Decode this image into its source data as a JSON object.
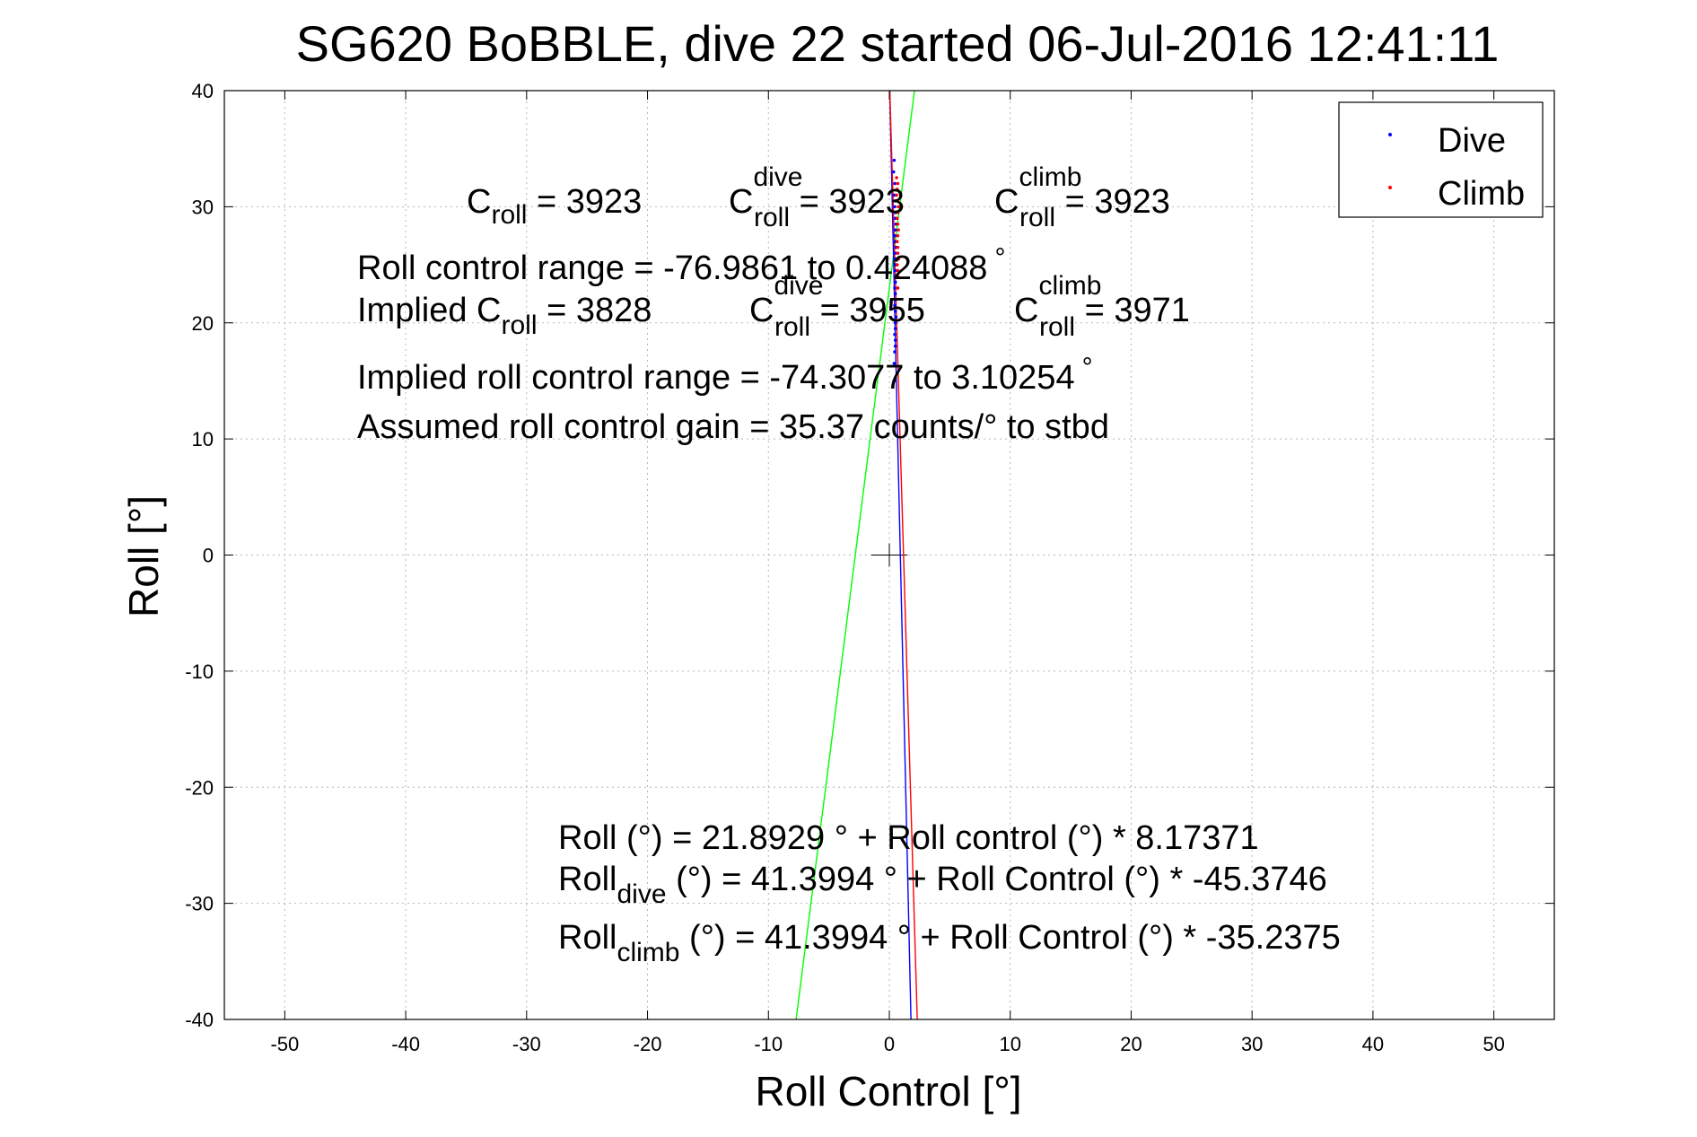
{
  "chart_data": {
    "type": "scatter",
    "title": "SG620 BoBBLE, dive 22 started 06-Jul-2016 12:41:11",
    "xlabel": "Roll Control [°]",
    "ylabel": "Roll [°]",
    "xlim": [
      -55,
      55
    ],
    "ylim": [
      -40,
      40
    ],
    "xticks": [
      -50,
      -40,
      -30,
      -20,
      -10,
      0,
      10,
      20,
      30,
      40,
      50
    ],
    "yticks": [
      -40,
      -30,
      -20,
      -10,
      0,
      10,
      20,
      30,
      40
    ],
    "grid": true,
    "legend": {
      "position": "top-right",
      "entries": [
        "Dive",
        "Climb"
      ]
    },
    "series": [
      {
        "name": "Dive",
        "color": "#0000ff",
        "points": [
          [
            0.4,
            34
          ],
          [
            0.35,
            33
          ],
          [
            0.45,
            32
          ],
          [
            0.4,
            31
          ],
          [
            0.5,
            30.5
          ],
          [
            0.45,
            30
          ],
          [
            0.5,
            29.5
          ],
          [
            0.5,
            29
          ],
          [
            0.55,
            28.5
          ],
          [
            0.5,
            28
          ],
          [
            0.45,
            27.5
          ],
          [
            0.5,
            27
          ],
          [
            0.55,
            26.5
          ],
          [
            0.5,
            26
          ],
          [
            0.45,
            25.5
          ],
          [
            0.5,
            25
          ],
          [
            0.5,
            24.5
          ],
          [
            0.55,
            24
          ],
          [
            0.5,
            23.5
          ],
          [
            0.45,
            23
          ],
          [
            0.5,
            22.5
          ],
          [
            0.5,
            22
          ],
          [
            0.45,
            21.5
          ],
          [
            0.5,
            21
          ],
          [
            0.55,
            20.5
          ],
          [
            0.5,
            20
          ],
          [
            0.5,
            19.5
          ],
          [
            0.45,
            19
          ],
          [
            0.5,
            18.5
          ],
          [
            0.5,
            18
          ],
          [
            0.45,
            17.5
          ],
          [
            0.4,
            16.5
          ],
          [
            0.4,
            15
          ]
        ]
      },
      {
        "name": "Climb",
        "color": "#ff0000",
        "points": [
          [
            0.6,
            32.5
          ],
          [
            0.7,
            32
          ],
          [
            0.65,
            31.5
          ],
          [
            0.6,
            31
          ],
          [
            0.7,
            30.5
          ],
          [
            0.75,
            30
          ],
          [
            0.7,
            29.5
          ],
          [
            0.65,
            29
          ],
          [
            0.7,
            28.5
          ],
          [
            0.75,
            28
          ],
          [
            0.7,
            27.5
          ],
          [
            0.65,
            27
          ],
          [
            0.7,
            26.5
          ],
          [
            0.7,
            26
          ],
          [
            0.75,
            25.5
          ],
          [
            0.65,
            25
          ],
          [
            0.7,
            24.5
          ],
          [
            0.7,
            24
          ],
          [
            0.7,
            23
          ]
        ]
      }
    ],
    "fit_lines": [
      {
        "color": "#00ff00",
        "x": [
          -7.71,
          2.08
        ],
        "y": [
          -40,
          40
        ]
      },
      {
        "color": "#0000ff",
        "x": [
          1.79,
          0.03
        ],
        "y": [
          -40,
          40
        ]
      },
      {
        "color": "#ff0000",
        "x": [
          2.31,
          0.04
        ],
        "y": [
          -40,
          40
        ]
      }
    ],
    "annotations": {
      "c_roll": {
        "base": "C",
        "sub": "roll",
        "rest": " = 3923"
      },
      "c_roll_dive": {
        "base": "C",
        "sup": "dive",
        "sub": "roll",
        "rest": " = 3923"
      },
      "c_roll_climb": {
        "base": "C",
        "sup": "climb",
        "sub": "roll",
        "rest": " = 3923"
      },
      "roll_control_range": {
        "text": "Roll control range = -76.9861 to 0.424088",
        "sup": "°"
      },
      "implied_c_roll": {
        "base": "Implied C",
        "sub": "roll",
        "rest": " = 3828"
      },
      "implied_c_roll_dive": {
        "base": "C",
        "sup": "dive",
        "sub": "roll",
        "rest": " = 3955"
      },
      "implied_c_roll_climb": {
        "base": "C",
        "sup": "climb",
        "sub": "roll",
        "rest": " = 3971"
      },
      "implied_range": {
        "text": "Implied roll control range = -74.3077 to 3.10254",
        "sup": "°"
      },
      "gain": {
        "text": "Assumed roll control gain = 35.37 counts/° to stbd"
      },
      "fit_all": {
        "base": "Roll (°) = 21.8929 ° + Roll control (°) * 8.17371"
      },
      "fit_dive": {
        "base": "Roll",
        "sub": "dive",
        "rest": " (°) = 41.3994 ° + Roll Control (°) * -45.3746"
      },
      "fit_climb": {
        "base": "Roll",
        "sub": "climb",
        "rest": " (°) = 41.3994 ° + Roll Control (°) * -35.2375"
      }
    }
  }
}
